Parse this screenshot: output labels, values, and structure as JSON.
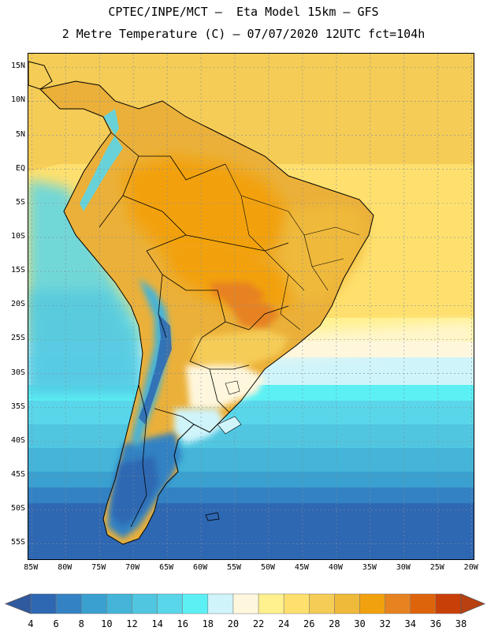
{
  "header": {
    "title_line1": "CPTEC/INPE/MCT –  Eta Model 15km – GFS",
    "title_line2": "2 Metre Temperature (C) – 07/07/2020 12UTC fct=104h"
  },
  "map": {
    "lat_labels": [
      "15N",
      "10N",
      "5N",
      "EQ",
      "5S",
      "10S",
      "15S",
      "20S",
      "25S",
      "30S",
      "35S",
      "40S",
      "45S",
      "50S",
      "55S"
    ],
    "lat_values": [
      15,
      10,
      5,
      0,
      -5,
      -10,
      -15,
      -20,
      -25,
      -30,
      -35,
      -40,
      -45,
      -50,
      -55
    ],
    "lon_labels": [
      "85W",
      "80W",
      "75W",
      "70W",
      "65W",
      "60W",
      "55W",
      "50W",
      "45W",
      "40W",
      "35W",
      "30W",
      "25W",
      "20W"
    ],
    "lon_values": [
      -85,
      -80,
      -75,
      -70,
      -65,
      -60,
      -55,
      -50,
      -45,
      -40,
      -35,
      -30,
      -25,
      -20
    ],
    "lat_range": [
      -57.5,
      17
    ],
    "lon_range": [
      -85.5,
      -19.5
    ],
    "gridlines": true
  },
  "colorbar": {
    "labels": [
      "4",
      "6",
      "8",
      "10",
      "12",
      "14",
      "16",
      "18",
      "20",
      "22",
      "24",
      "26",
      "28",
      "30",
      "32",
      "34",
      "36",
      "38"
    ],
    "colors": {
      "under": "#2f5aa0",
      "c4_6": "#2e67b2",
      "c6_8": "#3382c3",
      "c8_10": "#3aa0cf",
      "c10_12": "#44b4d8",
      "c12_14": "#50c6e0",
      "c14_16": "#5ad6ea",
      "c16_18": "#5cf0f4",
      "c18_20": "#cff4fa",
      "c20_22": "#fff7dd",
      "c22_24": "#fff18e",
      "c24_26": "#ffe06e",
      "c26_28": "#f5cc56",
      "c28_30": "#efb93a",
      "c30_32": "#f2a10e",
      "c32_34": "#e78221",
      "c34_36": "#de640c",
      "c36_38": "#c83f08",
      "over": "#b94010"
    }
  },
  "map_colors": {
    "land_outline": "#000000",
    "grid": "#7f8fa0"
  }
}
